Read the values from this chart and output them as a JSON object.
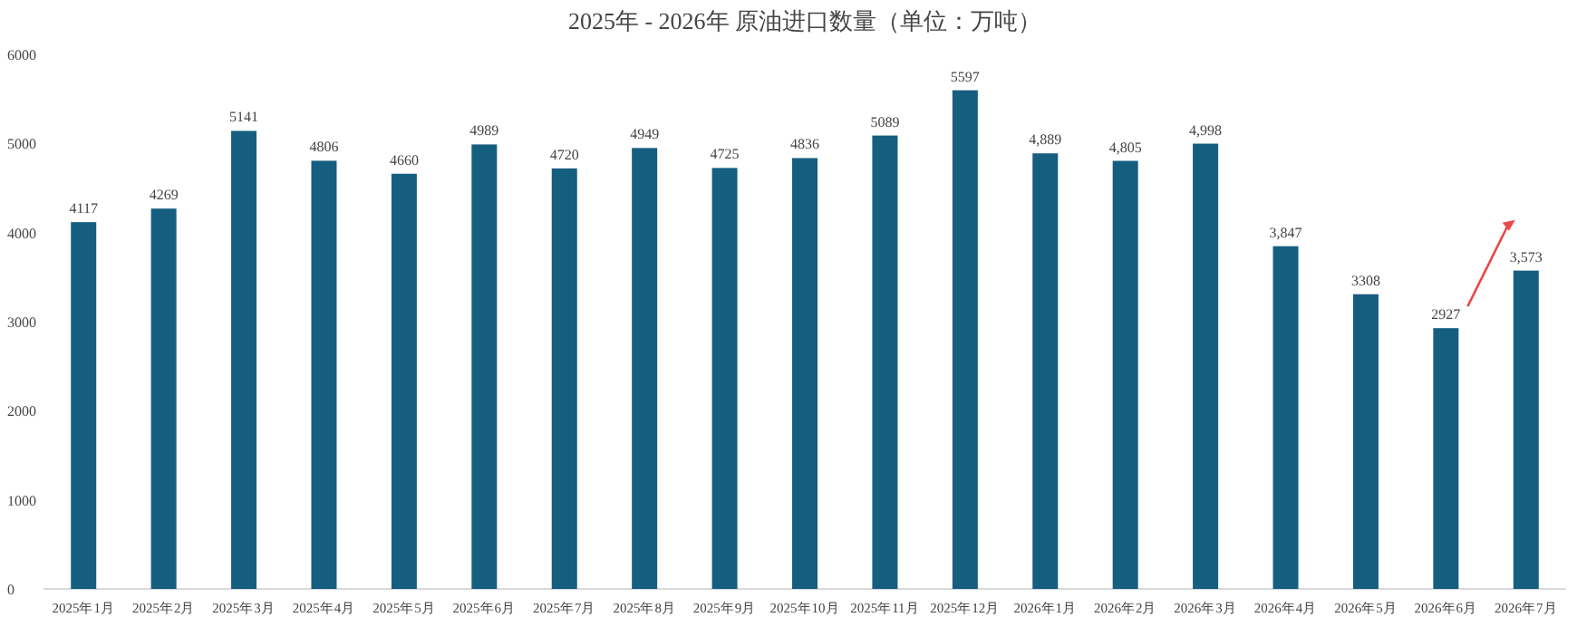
{
  "chart_data": {
    "type": "bar",
    "title": "2025年 - 2026年 原油进口数量（单位：万吨）",
    "categories": [
      "2025年1月",
      "2025年2月",
      "2025年3月",
      "2025年4月",
      "2025年5月",
      "2025年6月",
      "2025年7月",
      "2025年8月",
      "2025年9月",
      "2025年10月",
      "2025年11月",
      "2025年12月",
      "2026年1月",
      "2026年2月",
      "2026年3月",
      "2026年4月",
      "2026年5月",
      "2026年6月",
      "2026年7月"
    ],
    "values": [
      4117,
      4269,
      5141,
      4806,
      4660,
      4989,
      4720,
      4949,
      4725,
      4836,
      5089,
      5597,
      4889,
      4805,
      4998,
      3847,
      3308,
      2927,
      3573
    ],
    "value_labels": [
      "4117",
      "4269",
      "5141",
      "4806",
      "4660",
      "4989",
      "4720",
      "4949",
      "4725",
      "4836",
      "5089",
      "5597",
      "4,889",
      "4,805",
      "4,998",
      "3,847",
      "3308",
      "2927",
      "3,573"
    ],
    "color": "#155e80",
    "ylim": [
      0,
      6000
    ],
    "yticks": [
      0,
      1000,
      2000,
      3000,
      4000,
      5000,
      6000
    ],
    "grid": false
  }
}
